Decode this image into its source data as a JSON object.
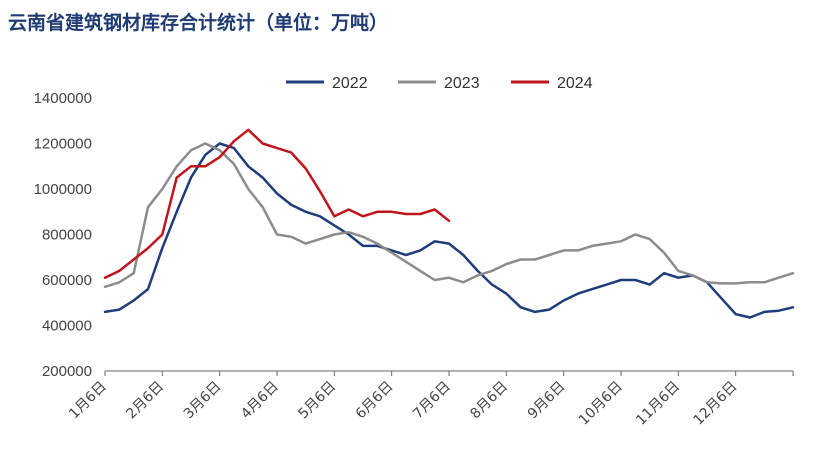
{
  "title": "云南省建筑钢材库存合计统计（单位：万吨）",
  "chart_data": {
    "type": "line",
    "title": "云南省建筑钢材库存合计统计（单位：万吨）",
    "ylim": [
      200000,
      1400000
    ],
    "yticks": [
      "1400000",
      "1200000",
      "1000000",
      "800000",
      "600000",
      "400000",
      "200000"
    ],
    "ytick_values": [
      1400000,
      1200000,
      1000000,
      800000,
      600000,
      400000,
      200000
    ],
    "categories": [
      "1月6日",
      "2月6日",
      "3月6日",
      "4月6日",
      "5月6日",
      "6月6日",
      "7月6日",
      "8月6日",
      "9月6日",
      "10月6日",
      "11月6日",
      "12月6日"
    ],
    "legend_position": "top",
    "grid": false,
    "series": [
      {
        "name": "2022",
        "color": "#1f3d7a",
        "x": [
          0,
          0.25,
          0.5,
          0.75,
          1,
          1.25,
          1.5,
          1.75,
          2,
          2.25,
          2.5,
          2.75,
          3,
          3.25,
          3.5,
          3.75,
          4,
          4.25,
          4.5,
          4.75,
          5,
          5.25,
          5.5,
          5.75,
          6,
          6.25,
          6.5,
          6.75,
          7,
          7.25,
          7.5,
          7.75,
          8,
          8.25,
          8.5,
          8.75,
          9,
          9.25,
          9.5,
          9.75,
          10,
          10.25,
          10.5,
          10.75,
          11,
          11.25,
          11.5,
          11.75,
          12
        ],
        "values": [
          460000,
          470000,
          510000,
          560000,
          740000,
          900000,
          1050000,
          1150000,
          1200000,
          1180000,
          1100000,
          1050000,
          980000,
          930000,
          900000,
          880000,
          840000,
          800000,
          750000,
          750000,
          730000,
          710000,
          730000,
          770000,
          760000,
          710000,
          640000,
          580000,
          540000,
          480000,
          460000,
          470000,
          510000,
          540000,
          560000,
          580000,
          600000,
          600000,
          580000,
          630000,
          610000,
          620000,
          590000,
          520000,
          450000,
          435000,
          460000,
          465000,
          480000
        ]
      },
      {
        "name": "2023",
        "color": "#8c8c8c",
        "x": [
          0,
          0.25,
          0.5,
          0.75,
          1,
          1.25,
          1.5,
          1.75,
          2,
          2.25,
          2.5,
          2.75,
          3,
          3.25,
          3.5,
          3.75,
          4,
          4.25,
          4.5,
          4.75,
          5,
          5.25,
          5.5,
          5.75,
          6,
          6.25,
          6.5,
          6.75,
          7,
          7.25,
          7.5,
          7.75,
          8,
          8.25,
          8.5,
          8.75,
          9,
          9.25,
          9.5,
          9.75,
          10,
          10.25,
          10.5,
          10.75,
          11,
          11.25,
          11.5,
          11.75,
          12
        ],
        "values": [
          570000,
          590000,
          630000,
          920000,
          1000000,
          1100000,
          1170000,
          1200000,
          1170000,
          1110000,
          1000000,
          920000,
          800000,
          790000,
          760000,
          780000,
          800000,
          810000,
          790000,
          760000,
          720000,
          680000,
          640000,
          600000,
          610000,
          590000,
          620000,
          640000,
          670000,
          690000,
          690000,
          710000,
          730000,
          730000,
          750000,
          760000,
          770000,
          800000,
          780000,
          720000,
          640000,
          620000,
          590000,
          585000,
          585000,
          590000,
          590000,
          610000,
          630000
        ]
      },
      {
        "name": "2024",
        "color": "#c0141c",
        "x": [
          0,
          0.25,
          0.5,
          0.75,
          1,
          1.25,
          1.5,
          1.75,
          2,
          2.25,
          2.5,
          2.75,
          3,
          3.25,
          3.5,
          3.75,
          4,
          4.25,
          4.5,
          4.75,
          5,
          5.25,
          5.5,
          5.75,
          6
        ],
        "values": [
          610000,
          640000,
          690000,
          740000,
          800000,
          1050000,
          1100000,
          1100000,
          1140000,
          1210000,
          1260000,
          1200000,
          1180000,
          1160000,
          1090000,
          990000,
          880000,
          910000,
          880000,
          900000,
          900000,
          890000,
          890000,
          910000,
          860000
        ]
      }
    ]
  }
}
